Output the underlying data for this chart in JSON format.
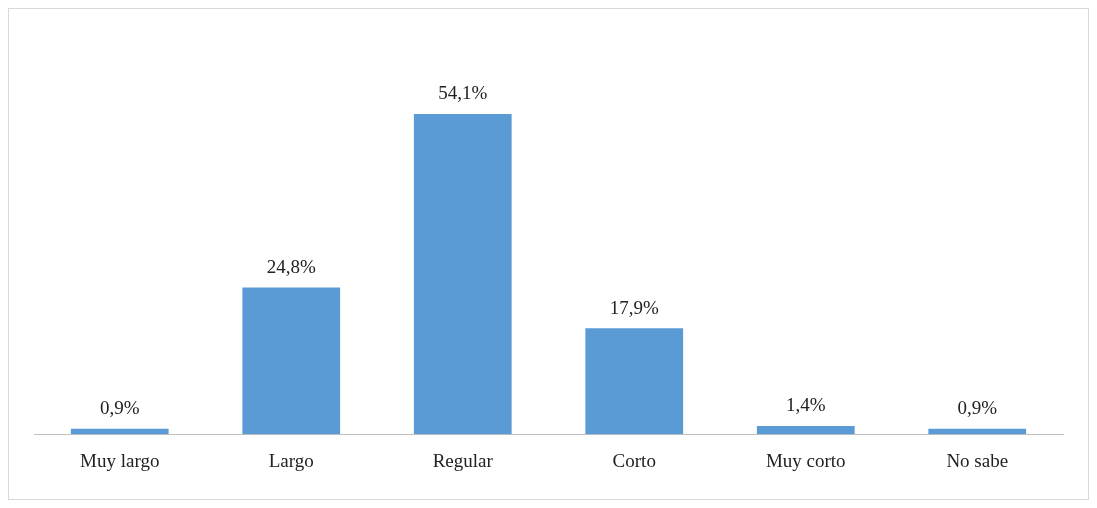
{
  "chart_data": {
    "type": "bar",
    "categories": [
      "Muy largo",
      "Largo",
      "Regular",
      "Corto",
      "Muy corto",
      "No sabe"
    ],
    "values": [
      0.9,
      24.8,
      54.1,
      17.9,
      1.4,
      0.9
    ],
    "value_labels": [
      "0,9%",
      "24,8%",
      "54,1%",
      "17,9%",
      "1,4%",
      "0,9%"
    ],
    "color": "#5b9bd5",
    "grid": false,
    "legend": false
  }
}
